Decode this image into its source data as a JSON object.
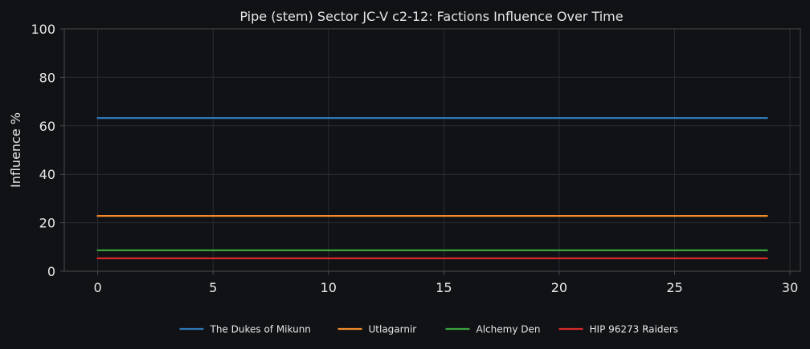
{
  "chart_data": {
    "type": "line",
    "title": "Pipe (stem) Sector JC-V c2-12: Factions Influence Over Time",
    "xlabel": "",
    "ylabel": "Influence %",
    "xlim": [
      -1.45,
      30.45
    ],
    "ylim": [
      0,
      100
    ],
    "xticks": [
      0,
      5,
      10,
      15,
      20,
      25,
      30
    ],
    "yticks": [
      0,
      20,
      40,
      60,
      80,
      100
    ],
    "grid": true,
    "legend_position": "bottom-center",
    "x": [
      0,
      29
    ],
    "series": [
      {
        "name": "The Dukes of Mikunn",
        "color": "#2f78b5",
        "values": [
          63.2,
          63.2
        ]
      },
      {
        "name": "Utlagarnir",
        "color": "#f08a2c",
        "values": [
          22.8,
          22.8
        ]
      },
      {
        "name": "Alchemy Den",
        "color": "#3aa23a",
        "values": [
          8.6,
          8.6
        ]
      },
      {
        "name": "HIP 96273 Raiders",
        "color": "#d62a2a",
        "values": [
          5.3,
          5.3
        ]
      }
    ]
  },
  "colors": {
    "background": "#111216",
    "axes_face": "#111216",
    "spine": "#4a4a4a",
    "grid": "#2a2c31",
    "text": "#e6e6e6"
  }
}
